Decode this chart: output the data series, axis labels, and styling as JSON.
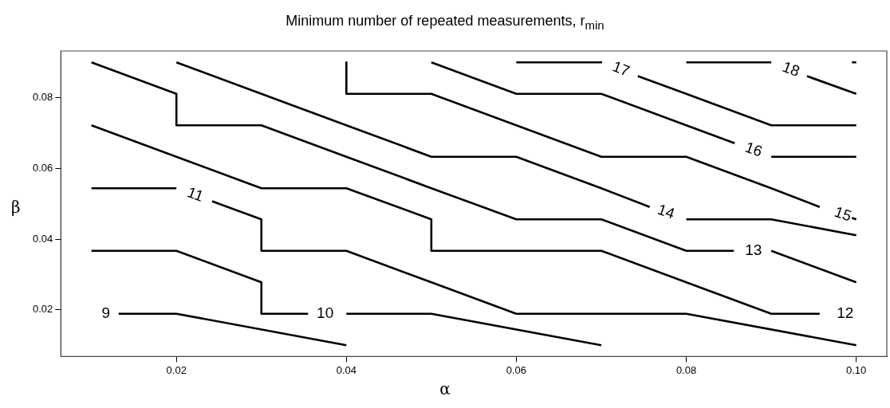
{
  "chart_data": {
    "type": "line",
    "title": "Minimum number of repeated measurements,  r$_{min}$",
    "xlabel": "α",
    "ylabel": "β",
    "xlim": [
      0.0064,
      0.1036
    ],
    "ylim": [
      0.0068,
      0.0932
    ],
    "xticks": [
      0.02,
      0.04,
      0.06,
      0.08,
      {
        "value": 0.1,
        "label": "0.10"
      }
    ],
    "yticks": [
      0.02,
      0.04,
      0.06,
      0.08
    ],
    "grid": false,
    "legend": false,
    "marker": "none",
    "line_style": "solid",
    "series": [
      {
        "name": "9",
        "color": "#000000",
        "x": [
          0.0132,
          0.02,
          0.04
        ],
        "values": [
          0.0189,
          0.0189,
          0.01
        ]
      },
      {
        "name": "10",
        "color": "#000000",
        "x": [
          0.01,
          0.02,
          0.03,
          0.03,
          0.0355,
          0.0375,
          0.04,
          0.05,
          0.07
        ],
        "values": [
          0.0367,
          0.0367,
          0.0278,
          0.0189,
          0.0189,
          null,
          0.0189,
          0.0189,
          0.01
        ]
      },
      {
        "name": "11",
        "color": "#000000",
        "x": [
          0.01,
          0.02,
          0.0222,
          0.0242,
          0.03,
          0.03,
          0.04,
          0.05,
          0.06,
          0.08,
          0.1
        ],
        "values": [
          0.0544,
          0.0544,
          null,
          0.0507,
          0.0456,
          0.0367,
          0.0367,
          0.0278,
          0.0189,
          0.0189,
          0.01
        ]
      },
      {
        "name": "12",
        "color": "#000000",
        "x": [
          0.01,
          0.02,
          0.03,
          0.04,
          0.05,
          0.05,
          0.07,
          0.08,
          0.09,
          0.0957
        ],
        "values": [
          0.0722,
          0.0633,
          0.0544,
          0.0544,
          0.0456,
          0.0367,
          0.0367,
          0.0278,
          0.0189,
          0.0189
        ]
      },
      {
        "name": "13",
        "color": "#000000",
        "x": [
          0.01,
          0.02,
          0.02,
          0.03,
          0.04,
          0.05,
          0.06,
          0.07,
          0.08,
          0.0856,
          0.0879,
          0.09,
          0.1
        ],
        "values": [
          0.09,
          0.0811,
          0.0722,
          0.0722,
          0.0633,
          0.0544,
          0.0456,
          0.0456,
          0.0367,
          0.0367,
          null,
          0.0367,
          0.0278
        ]
      },
      {
        "name": "14",
        "color": "#000000",
        "x": [
          0.02,
          0.03,
          0.04,
          0.05,
          0.06,
          0.07,
          0.0757,
          0.0776,
          0.08,
          0.09,
          0.1
        ],
        "values": [
          0.09,
          0.0811,
          0.0722,
          0.0633,
          0.0633,
          0.0544,
          0.0491,
          null,
          0.0456,
          0.0456,
          0.0411
        ]
      },
      {
        "name": "15",
        "color": "#000000",
        "x": [
          0.04,
          0.04,
          0.05,
          0.06,
          0.07,
          0.08,
          0.09,
          0.0957,
          0.0984,
          0.0995,
          0.1
        ],
        "values": [
          0.09,
          0.0811,
          0.0811,
          0.0722,
          0.0633,
          0.0633,
          0.0544,
          0.0491,
          null,
          0.046,
          0.0456
        ]
      },
      {
        "name": "16",
        "color": "#000000",
        "x": [
          0.05,
          0.06,
          0.07,
          0.08,
          0.0857,
          0.0879,
          0.09,
          0.1
        ],
        "values": [
          0.09,
          0.0811,
          0.0811,
          0.0722,
          0.0671,
          null,
          0.0633,
          0.0633
        ]
      },
      {
        "name": "17",
        "color": "#000000",
        "x": [
          0.06,
          0.0701,
          0.0723,
          0.0743,
          0.08,
          0.09,
          0.1
        ],
        "values": [
          0.09,
          0.09,
          null,
          0.0861,
          0.0811,
          0.0722,
          0.0722
        ]
      },
      {
        "name": "18",
        "color": "#000000",
        "x": [
          0.08,
          0.09,
          0.0923,
          0.0942,
          0.1
        ],
        "values": [
          0.09,
          0.09,
          null,
          0.0861,
          0.0811
        ]
      },
      {
        "color": "#000000",
        "x": [
          0.0995,
          0.1
        ],
        "values": [
          0.09,
          0.09
        ]
      }
    ]
  }
}
